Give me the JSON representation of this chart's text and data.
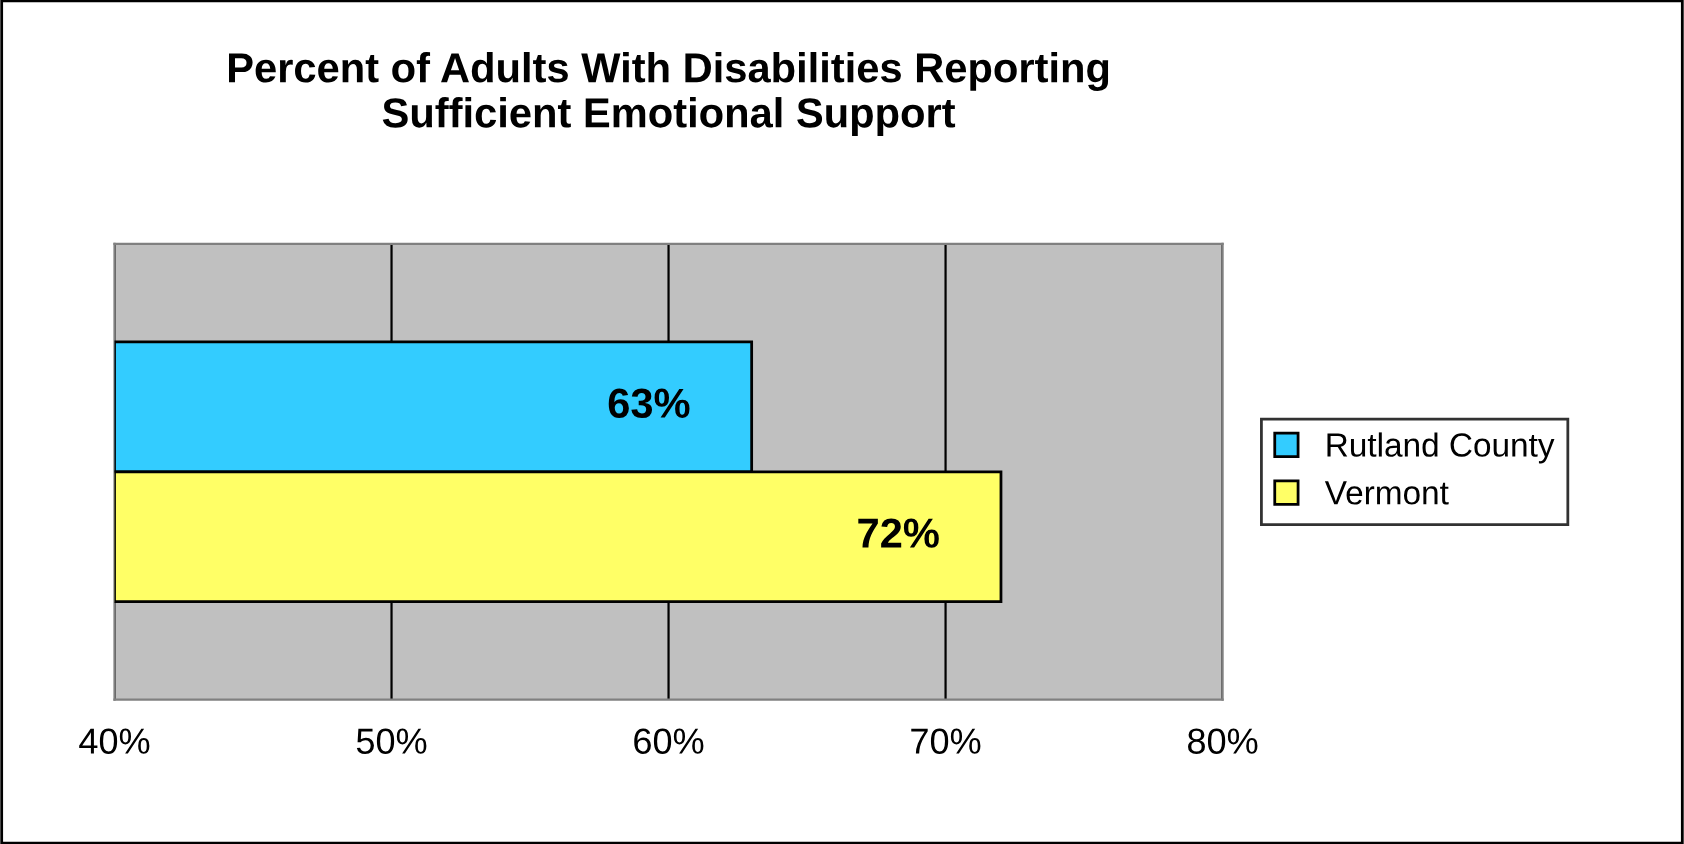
{
  "chart_data": {
    "type": "bar",
    "orientation": "horizontal",
    "title": "Percent of Adults With Disabilities Reporting\nSufficient Emotional Support",
    "categories": [
      null
    ],
    "series": [
      {
        "name": "Rutland County",
        "color": "#33ccff",
        "values": [
          63
        ],
        "value_labels": [
          "63%"
        ]
      },
      {
        "name": "Vermont",
        "color": "#ffff66",
        "values": [
          72
        ],
        "value_labels": [
          "72%"
        ]
      }
    ],
    "xlim": [
      40,
      80
    ],
    "xticks": [
      {
        "value": 40,
        "label": "40%"
      },
      {
        "value": 50,
        "label": "50%"
      },
      {
        "value": 60,
        "label": "60%"
      },
      {
        "value": 70,
        "label": "70%"
      },
      {
        "value": 80,
        "label": "80%"
      }
    ],
    "grid": "x",
    "legend": "right"
  }
}
